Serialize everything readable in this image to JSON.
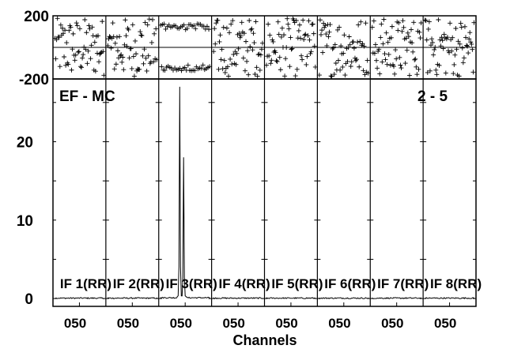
{
  "chart_data": {
    "type": "line",
    "title_left": "EF - MC",
    "title_right": "2 - 5",
    "xlabel": "Channels",
    "phase_panel": {
      "ylim": [
        -200,
        200
      ],
      "yticks": [
        200,
        -200
      ]
    },
    "amp_panel": {
      "ylim": [
        -1,
        28
      ],
      "yticks": [
        0,
        10,
        20
      ]
    },
    "channel_range": [
      0,
      64
    ],
    "x_tick_label": "050",
    "series": [
      {
        "name": "IF 1(RR)",
        "baseline": 0.05,
        "phase": "scatter"
      },
      {
        "name": "IF 2(RR)",
        "baseline": 0.05,
        "phase": "scatter"
      },
      {
        "name": "IF 3(RR)",
        "baseline": 0.1,
        "phase": "coherent",
        "lines": [
          {
            "channel": 25,
            "amplitude": 27.0
          },
          {
            "channel": 30,
            "amplitude": 18.0
          }
        ]
      },
      {
        "name": "IF 4(RR)",
        "baseline": 0.05,
        "phase": "scatter"
      },
      {
        "name": "IF 5(RR)",
        "baseline": 0.05,
        "phase": "scatter"
      },
      {
        "name": "IF 6(RR)",
        "baseline": 0.05,
        "phase": "scatter"
      },
      {
        "name": "IF 7(RR)",
        "baseline": 0.05,
        "phase": "scatter"
      },
      {
        "name": "IF 8(RR)",
        "baseline": 0.05,
        "phase": "scatter"
      }
    ]
  }
}
